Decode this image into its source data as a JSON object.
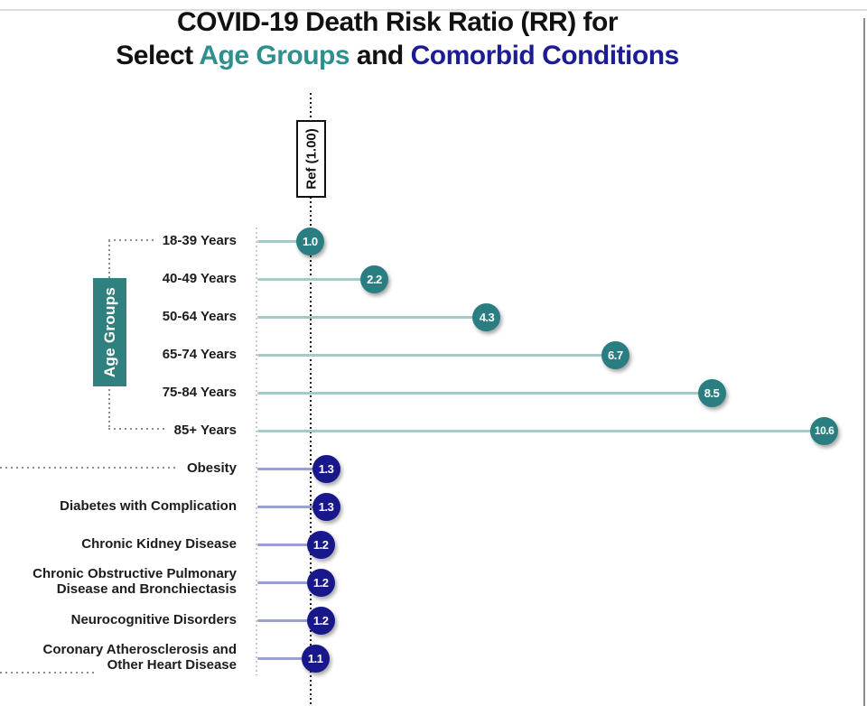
{
  "title": {
    "line1": "COVID-19 Death Risk Ratio (RR) for",
    "line2_select": "Select ",
    "line2_age": "Age Groups",
    "line2_and": " and ",
    "line2_comorbid": "Comorbid Conditions"
  },
  "ref_label": "Ref (1.00)",
  "colors": {
    "title_teal": "#2f8f8d",
    "title_navy": "#1c1c94",
    "age_marker": "#2a7e81",
    "age_stem": "#a5cbc7",
    "age_group_box": "#30807f",
    "comorbid_marker": "#18188a",
    "comorbid_stem": "#9aa0cf",
    "ref_line": "#1a1a1a",
    "bracket_dots": "#8f8f8f"
  },
  "chart_data": {
    "type": "bar",
    "subtype": "lollipop",
    "orientation": "horizontal",
    "title": "COVID-19 Death Risk Ratio (RR) for Select Age Groups and Comorbid Conditions",
    "reference": {
      "label": "Ref (1.00)",
      "value": 1.0
    },
    "x_range_shown": [
      0,
      10.6
    ],
    "grid": false,
    "legend": "none",
    "series": [
      {
        "name": "Age Groups",
        "marker_color": "#2a7e81",
        "stem_color": "#a5cbc7",
        "items": [
          {
            "label": [
              "18-39 Years"
            ],
            "value": 1.0,
            "display": "1.0"
          },
          {
            "label": [
              "40-49 Years"
            ],
            "value": 2.2,
            "display": "2.2"
          },
          {
            "label": [
              "50-64 Years"
            ],
            "value": 4.3,
            "display": "4.3"
          },
          {
            "label": [
              "65-74 Years"
            ],
            "value": 6.7,
            "display": "6.7"
          },
          {
            "label": [
              "75-84 Years"
            ],
            "value": 8.5,
            "display": "8.5"
          },
          {
            "label": [
              "85+ Years"
            ],
            "value": 10.6,
            "display": "10.6"
          }
        ]
      },
      {
        "name": "Comorbid Conditions",
        "marker_color": "#18188a",
        "stem_color": "#9aa0cf",
        "items": [
          {
            "label": [
              "Obesity"
            ],
            "value": 1.3,
            "display": "1.3"
          },
          {
            "label": [
              "Diabetes with Complication"
            ],
            "value": 1.3,
            "display": "1.3"
          },
          {
            "label": [
              "Chronic Kidney Disease"
            ],
            "value": 1.2,
            "display": "1.2"
          },
          {
            "label": [
              "Chronic Obstructive Pulmonary",
              "Disease and Bronchiectasis"
            ],
            "value": 1.2,
            "display": "1.2"
          },
          {
            "label": [
              "Neurocognitive Disorders"
            ],
            "value": 1.2,
            "display": "1.2"
          },
          {
            "label": [
              "Coronary Atherosclerosis and",
              "Other Heart Disease"
            ],
            "value": 1.1,
            "display": "1.1"
          }
        ]
      }
    ]
  }
}
